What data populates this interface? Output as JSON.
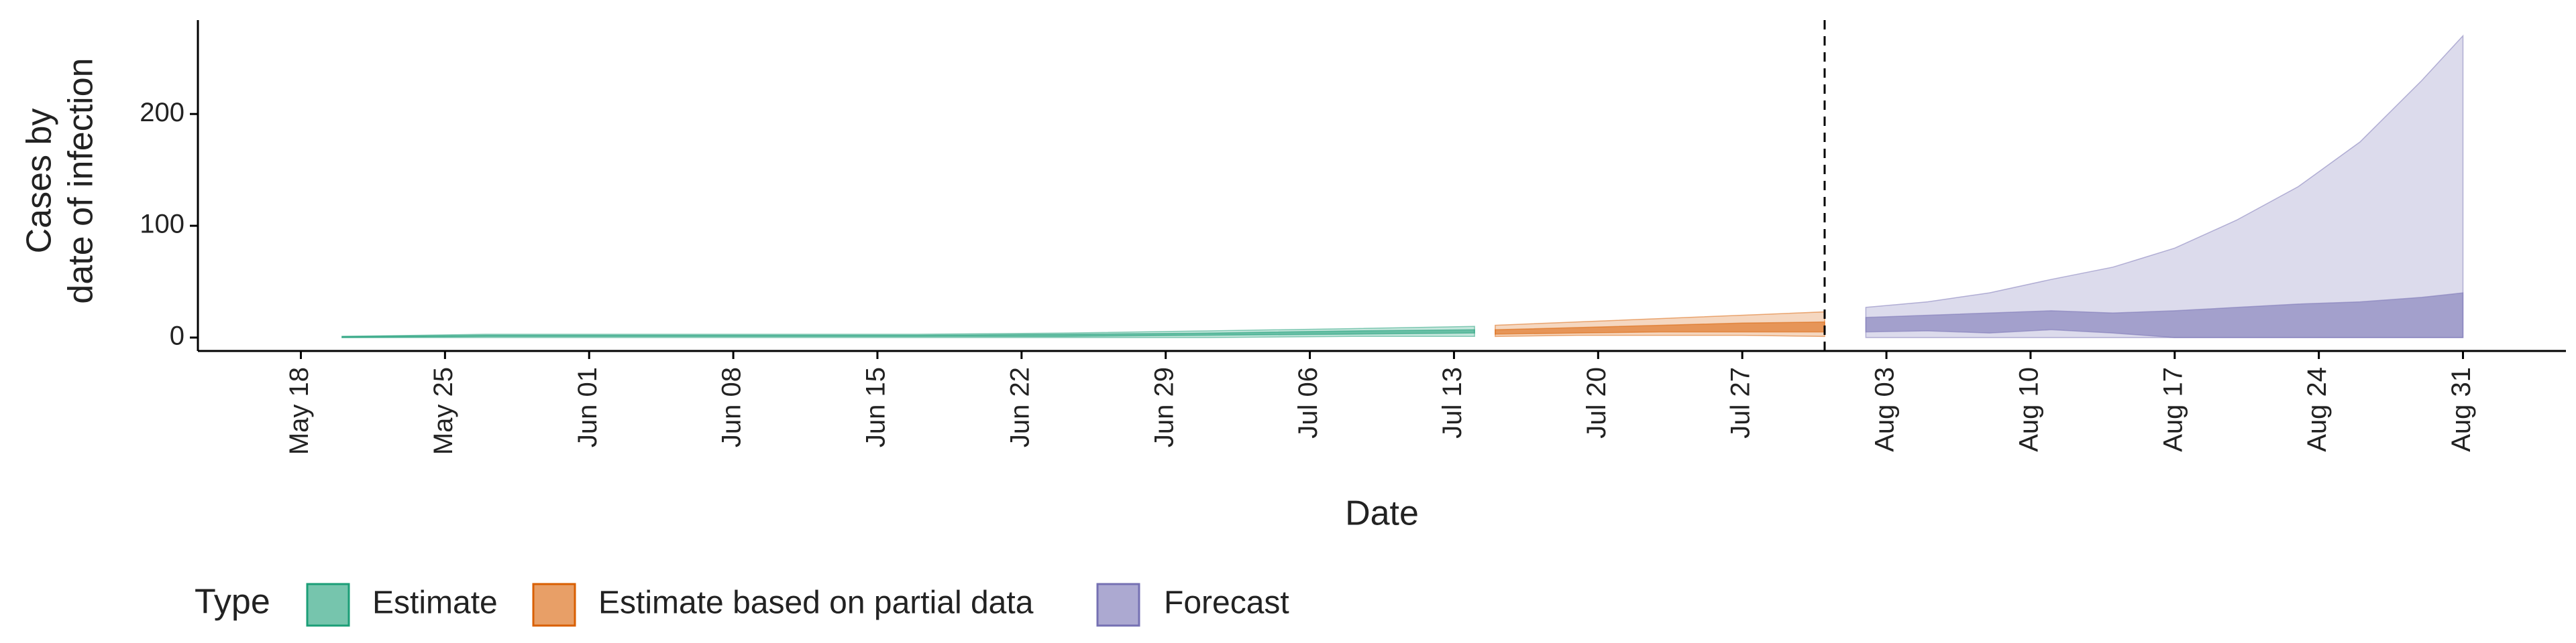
{
  "chart_data": {
    "type": "band",
    "y_label": [
      "Cases by",
      "date of infection"
    ],
    "x_label": "Date",
    "legend_title": "Type",
    "xlim": [
      "May 13",
      "Sep 5"
    ],
    "xticks": [
      "May 18",
      "May 25",
      "Jun 01",
      "Jun 08",
      "Jun 15",
      "Jun 22",
      "Jun 29",
      "Jul 06",
      "Jul 13",
      "Jul 20",
      "Jul 27",
      "Aug 03",
      "Aug 10",
      "Aug 17",
      "Aug 24",
      "Aug 31"
    ],
    "ylim": [
      -12,
      284
    ],
    "yticks": [
      0,
      100,
      200
    ],
    "vline": "Jul 31",
    "series": [
      {
        "name": "Estimate",
        "color": "#1b9e77",
        "x": [
          "May 20",
          "May 27",
          "Jun 03",
          "Jun 10",
          "Jun 17",
          "Jun 24",
          "Jul 01",
          "Jul 08",
          "Jul 14"
        ],
        "upper90": [
          1,
          3,
          3,
          3,
          3,
          4,
          6,
          8,
          10
        ],
        "lower90": [
          0,
          0,
          0,
          0,
          0,
          0,
          0,
          1,
          1
        ],
        "upper50": [
          1,
          2,
          2,
          2,
          2,
          3,
          4,
          6,
          7
        ],
        "lower50": [
          0,
          1,
          1,
          1,
          1,
          1,
          2,
          3,
          4
        ]
      },
      {
        "name": "Estimate based on partial data",
        "color": "#d95f02",
        "x": [
          "Jul 15",
          "Jul 19",
          "Jul 23",
          "Jul 27",
          "Jul 31"
        ],
        "upper90": [
          11,
          14,
          17,
          20,
          23
        ],
        "lower90": [
          1,
          2,
          2,
          2,
          1
        ],
        "upper50": [
          7,
          9,
          11,
          13,
          14
        ],
        "lower50": [
          3,
          4,
          5,
          5,
          5
        ]
      },
      {
        "name": "Forecast",
        "color": "#7570b3",
        "x": [
          "Aug 02",
          "Aug 05",
          "Aug 08",
          "Aug 11",
          "Aug 14",
          "Aug 17",
          "Aug 20",
          "Aug 23",
          "Aug 26",
          "Aug 29",
          "Aug 31"
        ],
        "upper90": [
          27,
          32,
          40,
          52,
          63,
          80,
          105,
          135,
          175,
          230,
          270
        ],
        "lower90": [
          0,
          0,
          0,
          0,
          0,
          0,
          0,
          0,
          0,
          0,
          0
        ],
        "upper50": [
          18,
          20,
          22,
          24,
          22,
          24,
          27,
          30,
          32,
          36,
          40
        ],
        "lower50": [
          5,
          6,
          4,
          7,
          4,
          0,
          0,
          0,
          0,
          0,
          0
        ]
      }
    ]
  }
}
